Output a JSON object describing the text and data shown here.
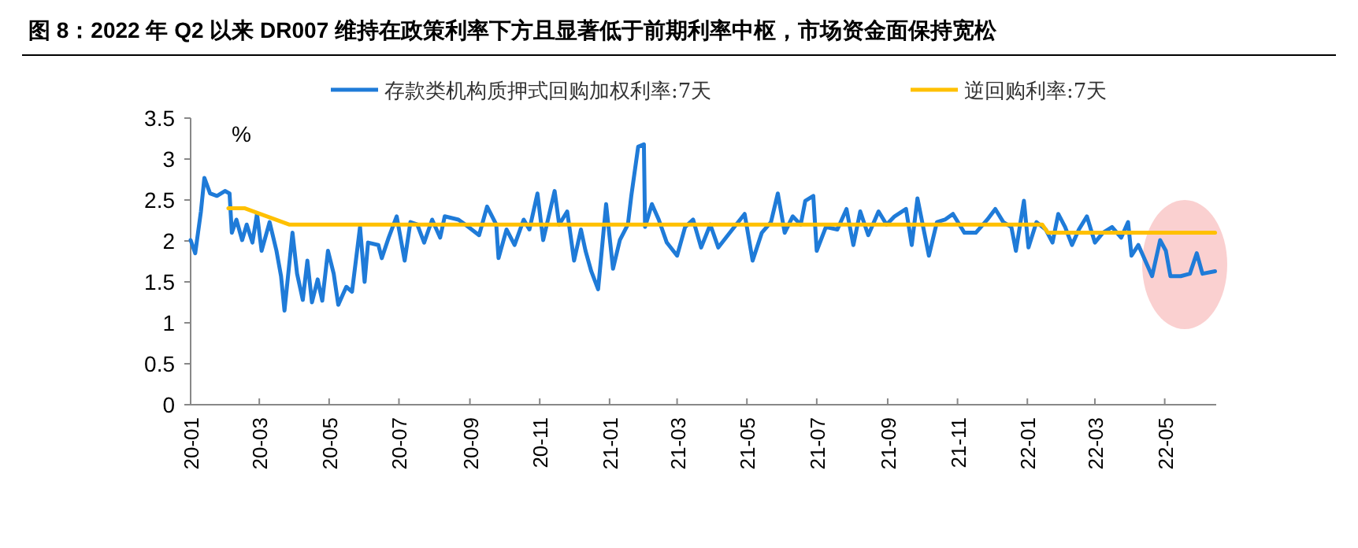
{
  "chart_data": {
    "type": "line",
    "title": "图 8：2022 年 Q2 以来 DR007 维持在政策利率下方且显著低于前期利率中枢，市场资金面保持宽松",
    "ylabel": "%",
    "legend": "top",
    "marker": "none",
    "line_style": "solid",
    "grid": false,
    "xlim": [
      "2020-01-01",
      "2022-06-15"
    ],
    "xticks": [
      {
        "value": "2020-01-01",
        "label": "20-01"
      },
      {
        "value": "2020-03-01",
        "label": "20-03"
      },
      {
        "value": "2020-05-01",
        "label": "20-05"
      },
      {
        "value": "2020-07-01",
        "label": "20-07"
      },
      {
        "value": "2020-09-01",
        "label": "20-09"
      },
      {
        "value": "2020-11-01",
        "label": "20-11"
      },
      {
        "value": "2021-01-01",
        "label": "21-01"
      },
      {
        "value": "2021-03-01",
        "label": "21-03"
      },
      {
        "value": "2021-05-01",
        "label": "21-05"
      },
      {
        "value": "2021-07-01",
        "label": "21-07"
      },
      {
        "value": "2021-09-01",
        "label": "21-09"
      },
      {
        "value": "2021-11-01",
        "label": "21-11"
      },
      {
        "value": "2022-01-01",
        "label": "22-01"
      },
      {
        "value": "2022-03-01",
        "label": "22-03"
      },
      {
        "value": "2022-05-01",
        "label": "22-05"
      }
    ],
    "ylim": [
      0,
      3.5
    ],
    "yticks": [
      0,
      0.5,
      1,
      1.5,
      2,
      2.5,
      3,
      3.5
    ],
    "series": [
      {
        "name": "存款类机构质押式回购加权利率:7天",
        "color": "#1f7bd8",
        "x": [
          "2020-01-01",
          "2020-01-05",
          "2020-01-10",
          "2020-01-13",
          "2020-01-18",
          "2020-01-24",
          "2020-01-31",
          "2020-02-04",
          "2020-02-06",
          "2020-02-10",
          "2020-02-15",
          "2020-02-19",
          "2020-02-24",
          "2020-02-28",
          "2020-03-03",
          "2020-03-10",
          "2020-03-16",
          "2020-03-20",
          "2020-03-23",
          "2020-03-30",
          "2020-04-03",
          "2020-04-08",
          "2020-04-12",
          "2020-04-16",
          "2020-04-21",
          "2020-04-25",
          "2020-04-30",
          "2020-05-05",
          "2020-05-09",
          "2020-05-16",
          "2020-05-21",
          "2020-05-28",
          "2020-06-01",
          "2020-06-04",
          "2020-06-13",
          "2020-06-16",
          "2020-06-22",
          "2020-06-29",
          "2020-07-06",
          "2020-07-11",
          "2020-07-17",
          "2020-07-23",
          "2020-07-30",
          "2020-08-06",
          "2020-08-10",
          "2020-08-22",
          "2020-08-28",
          "2020-09-09",
          "2020-09-16",
          "2020-09-24",
          "2020-09-26",
          "2020-10-03",
          "2020-10-10",
          "2020-10-18",
          "2020-10-23",
          "2020-10-30",
          "2020-11-04",
          "2020-11-14",
          "2020-11-18",
          "2020-11-25",
          "2020-12-01",
          "2020-12-07",
          "2020-12-11",
          "2020-12-16",
          "2020-12-22",
          "2020-12-29",
          "2021-01-04",
          "2021-01-10",
          "2021-01-17",
          "2021-01-20",
          "2021-01-26",
          "2021-01-31",
          "2021-02-01",
          "2021-02-07",
          "2021-02-13",
          "2021-02-20",
          "2021-03-01",
          "2021-03-08",
          "2021-03-15",
          "2021-03-22",
          "2021-03-30",
          "2021-04-06",
          "2021-04-20",
          "2021-04-29",
          "2021-05-06",
          "2021-05-14",
          "2021-05-22",
          "2021-05-28",
          "2021-06-03",
          "2021-06-10",
          "2021-06-17",
          "2021-06-21",
          "2021-06-28",
          "2021-07-01",
          "2021-07-09",
          "2021-07-19",
          "2021-07-27",
          "2021-08-02",
          "2021-08-08",
          "2021-08-15",
          "2021-08-24",
          "2021-08-31",
          "2021-09-07",
          "2021-09-17",
          "2021-09-22",
          "2021-09-27",
          "2021-10-07",
          "2021-10-14",
          "2021-10-21",
          "2021-10-28",
          "2021-11-07",
          "2021-11-17",
          "2021-11-27",
          "2021-12-04",
          "2021-12-11",
          "2021-12-18",
          "2021-12-22",
          "2021-12-29",
          "2022-01-02",
          "2022-01-09",
          "2022-01-17",
          "2022-01-23",
          "2022-01-28",
          "2022-02-03",
          "2022-02-09",
          "2022-02-15",
          "2022-02-22",
          "2022-03-01",
          "2022-03-08",
          "2022-03-16",
          "2022-03-24",
          "2022-03-30",
          "2022-04-02",
          "2022-04-08",
          "2022-04-13",
          "2022-04-20",
          "2022-04-27",
          "2022-05-02",
          "2022-05-06",
          "2022-05-15",
          "2022-05-23",
          "2022-05-29",
          "2022-06-03",
          "2022-06-14"
        ],
        "values": [
          2.01,
          1.85,
          2.36,
          2.77,
          2.58,
          2.55,
          2.61,
          2.58,
          2.1,
          2.26,
          2.01,
          2.2,
          1.98,
          2.33,
          1.88,
          2.23,
          1.88,
          1.57,
          1.15,
          2.1,
          1.6,
          1.28,
          1.76,
          1.25,
          1.53,
          1.27,
          1.88,
          1.6,
          1.22,
          1.44,
          1.38,
          2.17,
          1.5,
          1.98,
          1.95,
          1.79,
          2.04,
          2.3,
          1.76,
          2.23,
          2.2,
          1.98,
          2.26,
          2.04,
          2.3,
          2.26,
          2.2,
          2.07,
          2.42,
          2.2,
          1.79,
          2.14,
          1.95,
          2.26,
          2.14,
          2.58,
          2.01,
          2.61,
          2.2,
          2.36,
          1.76,
          2.14,
          1.88,
          1.63,
          1.41,
          2.45,
          1.66,
          2.01,
          2.2,
          2.55,
          3.15,
          3.18,
          2.17,
          2.45,
          2.26,
          1.98,
          1.82,
          2.17,
          2.26,
          1.92,
          2.2,
          1.92,
          2.17,
          2.33,
          1.76,
          2.1,
          2.23,
          2.58,
          2.1,
          2.3,
          2.2,
          2.49,
          2.55,
          1.88,
          2.17,
          2.14,
          2.39,
          1.95,
          2.36,
          2.07,
          2.36,
          2.2,
          2.3,
          2.39,
          1.95,
          2.52,
          1.82,
          2.23,
          2.26,
          2.33,
          2.1,
          2.1,
          2.26,
          2.39,
          2.23,
          2.17,
          1.88,
          2.49,
          1.92,
          2.23,
          2.14,
          1.98,
          2.33,
          2.17,
          1.95,
          2.14,
          2.3,
          1.98,
          2.1,
          2.17,
          2.04,
          2.23,
          1.82,
          1.95,
          1.79,
          1.57,
          2.01,
          1.88,
          1.57,
          1.57,
          1.6,
          1.85,
          1.6,
          1.63
        ]
      },
      {
        "name": "逆回购利率:7天",
        "color": "#ffc000",
        "x": [
          "2020-02-03",
          "2020-02-17",
          "2020-03-27",
          "2022-01-14",
          "2022-01-19",
          "2022-06-14"
        ],
        "values": [
          2.4,
          2.4,
          2.2,
          2.2,
          2.1,
          2.1
        ]
      }
    ]
  }
}
